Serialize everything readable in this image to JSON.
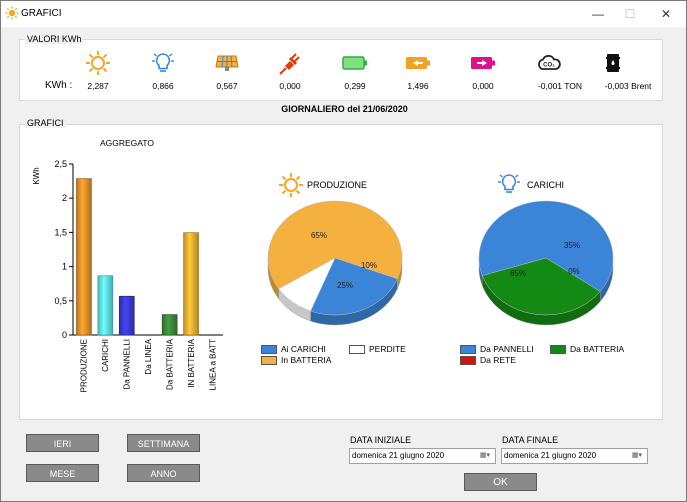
{
  "window": {
    "title": "GRAFICI",
    "minimize": "—",
    "maximize": "☐",
    "close": "✕"
  },
  "valori": {
    "group_label": "VALORI KWh",
    "unit_label": "KWh :",
    "items": [
      {
        "icon": "sun-icon",
        "value": "2,287"
      },
      {
        "icon": "lightbulb-icon",
        "value": "0,866"
      },
      {
        "icon": "solar-panel-icon",
        "value": "0,567"
      },
      {
        "icon": "plug-icon",
        "value": "0,000"
      },
      {
        "icon": "battery-green-icon",
        "value": "0,299"
      },
      {
        "icon": "battery-charge-in-icon",
        "value": "1,496"
      },
      {
        "icon": "battery-charge-out-icon",
        "value": "0,000"
      },
      {
        "icon": "co2-cloud-icon",
        "value": "-0,001 TON"
      },
      {
        "icon": "oil-barrel-icon",
        "value": "-0,003 Brent"
      }
    ]
  },
  "daily_title": "GIORNALIERO del 21/06/2020",
  "grafici": {
    "group_label": "GRAFICI",
    "bar_title": "AGGREGATO",
    "pie1_title": "PRODUZIONE",
    "pie2_title": "CARICHI"
  },
  "chart_data": [
    {
      "type": "bar",
      "title": "AGGREGATO",
      "ylabel": "KWh",
      "ylim": [
        0,
        2.5
      ],
      "yticks": [
        "0",
        "0,5",
        "1",
        "1,5",
        "2",
        "2,5"
      ],
      "categories": [
        "PRODUZIONE",
        "CARICHI",
        "Da PANNELLI",
        "Da LINEA",
        "Da BATTERIA",
        "IN BATTERIA",
        "LINEA a BATT"
      ],
      "values": [
        2.287,
        0.866,
        0.567,
        0,
        0.299,
        1.496,
        0
      ],
      "colors": [
        "#e8922a",
        "#5fe3e8",
        "#3b3bd6",
        "#888888",
        "#3a8a3a",
        "#f0b030",
        "#888888"
      ]
    },
    {
      "type": "pie",
      "title": "PRODUZIONE",
      "labels": [
        "Ai CARICHI",
        "PERDITE",
        "In BATTERIA"
      ],
      "values": [
        25,
        10,
        65
      ],
      "value_labels": [
        "25%",
        "10%",
        "65%"
      ],
      "colors": [
        "#3a85d8",
        "#ffffff",
        "#f4b13f"
      ]
    },
    {
      "type": "pie",
      "title": "CARICHI",
      "labels": [
        "Da PANNELLI",
        "Da BATTERIA",
        "Da RETE"
      ],
      "values": [
        65,
        35,
        0
      ],
      "value_labels": [
        "65%",
        "35%",
        "0%"
      ],
      "colors": [
        "#3a85d8",
        "#138a13",
        "#d81010"
      ]
    }
  ],
  "buttons": {
    "ieri": "IERI",
    "settimana": "SETTIMANA",
    "mese": "MESE",
    "anno": "ANNO",
    "ok": "OK"
  },
  "dates": {
    "start_label": "DATA INIZIALE",
    "start_value": "domenica 21   giugno   2020",
    "end_label": "DATA FINALE",
    "end_value": "domenica 21   giugno   2020"
  }
}
